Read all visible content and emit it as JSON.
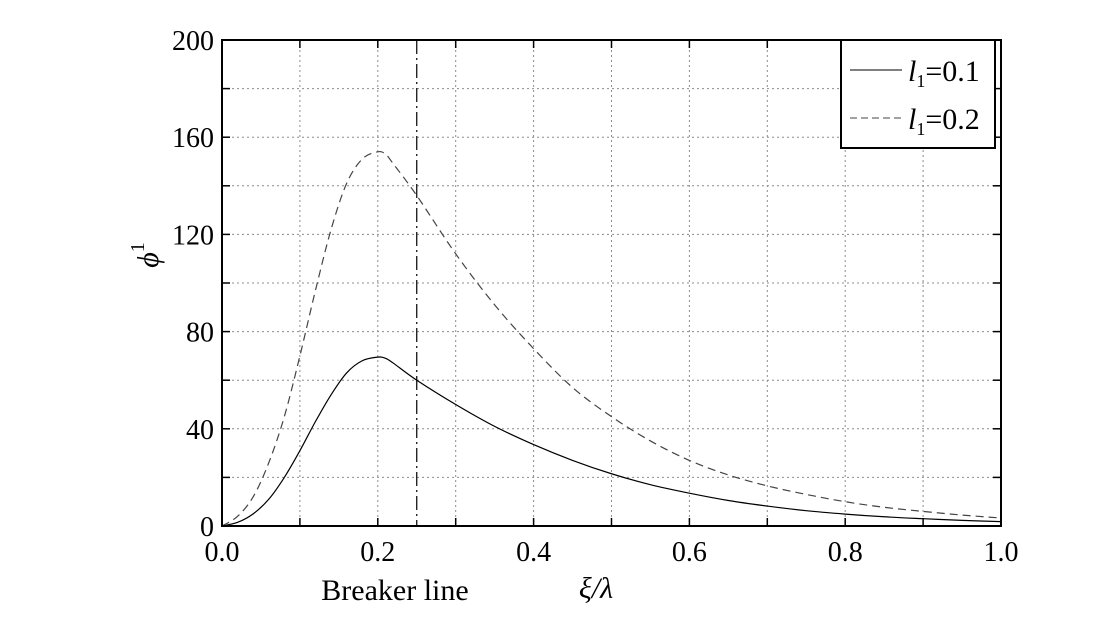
{
  "chart_data": {
    "type": "line",
    "title": "",
    "xlabel": "ξ/λ",
    "ylabel": "ϕ",
    "ylabel_superscript": "1",
    "xlim": [
      0.0,
      1.0
    ],
    "ylim": [
      0,
      200
    ],
    "xticks": [
      "0.0",
      "0.2",
      "0.4",
      "0.6",
      "0.8",
      "1.0"
    ],
    "yticks": [
      "0",
      "40",
      "80",
      "120",
      "160",
      "200"
    ],
    "x_minor_step": 0.1,
    "y_minor_step": 20,
    "grid": true,
    "legend_position": "top-right",
    "annotation": {
      "text": "Breaker line",
      "x": 0.25,
      "style": "dash-dot"
    },
    "series": [
      {
        "name_var": "l",
        "name_sub": "1",
        "name_val": "=0.1",
        "style": "solid",
        "x": [
          0.0,
          0.02,
          0.04,
          0.06,
          0.08,
          0.1,
          0.12,
          0.14,
          0.16,
          0.18,
          0.2,
          0.21,
          0.22,
          0.25,
          0.3,
          0.35,
          0.4,
          0.45,
          0.5,
          0.55,
          0.6,
          0.65,
          0.7,
          0.75,
          0.8,
          0.85,
          0.9,
          0.95,
          1.0
        ],
        "values": [
          0,
          1.5,
          5,
          11,
          20,
          31,
          43,
          54,
          63,
          68,
          69.5,
          69,
          67,
          60,
          50,
          41,
          33.5,
          27,
          21.5,
          17,
          13.5,
          10.5,
          8.2,
          6.3,
          4.9,
          3.8,
          3,
          2.3,
          1.8
        ]
      },
      {
        "name_var": "l",
        "name_sub": "1",
        "name_val": "=0.2",
        "style": "dashed",
        "x": [
          0.0,
          0.02,
          0.04,
          0.06,
          0.08,
          0.1,
          0.12,
          0.14,
          0.16,
          0.18,
          0.2,
          0.21,
          0.22,
          0.25,
          0.3,
          0.35,
          0.4,
          0.45,
          0.5,
          0.55,
          0.6,
          0.65,
          0.7,
          0.75,
          0.8,
          0.85,
          0.9,
          0.95,
          1.0
        ],
        "values": [
          0,
          4,
          12,
          26,
          45,
          70,
          97,
          122,
          141,
          151,
          154,
          153,
          149,
          136,
          112,
          91,
          73,
          57,
          45,
          35,
          27,
          21,
          16.5,
          13,
          10,
          7.7,
          6,
          4.5,
          3.3
        ]
      }
    ]
  }
}
